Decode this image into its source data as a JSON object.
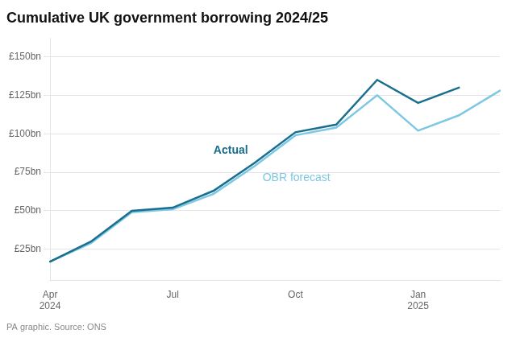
{
  "chart_data": {
    "type": "line",
    "title": "Cumulative UK government borrowing 2024/25",
    "annotations": [
      "PA graphic. Source: ONS"
    ],
    "categories": [
      "Apr\n2024",
      null,
      null,
      "Jul",
      null,
      null,
      "Oct",
      null,
      null,
      "Jan\n2025",
      null,
      null
    ],
    "series": [
      {
        "name": "OBR forecast",
        "color": "#7ec8e3",
        "values": [
          17,
          29,
          49,
          51,
          61,
          79,
          99,
          104,
          125,
          102,
          112,
          128
        ]
      },
      {
        "name": "Actual",
        "color": "#1a6e8e",
        "values": [
          17,
          30,
          50,
          52,
          63,
          81,
          101,
          106,
          135,
          120,
          130,
          null
        ]
      }
    ],
    "ylim": [
      5,
      162
    ],
    "yticks": [
      {
        "value": 25,
        "label": "£25bn"
      },
      {
        "value": 50,
        "label": "£50bn"
      },
      {
        "value": 75,
        "label": "£75bn"
      },
      {
        "value": 100,
        "label": "£100bn"
      },
      {
        "value": 125,
        "label": "£125bn"
      },
      {
        "value": 150,
        "label": "£150bn"
      }
    ],
    "grid": true
  }
}
